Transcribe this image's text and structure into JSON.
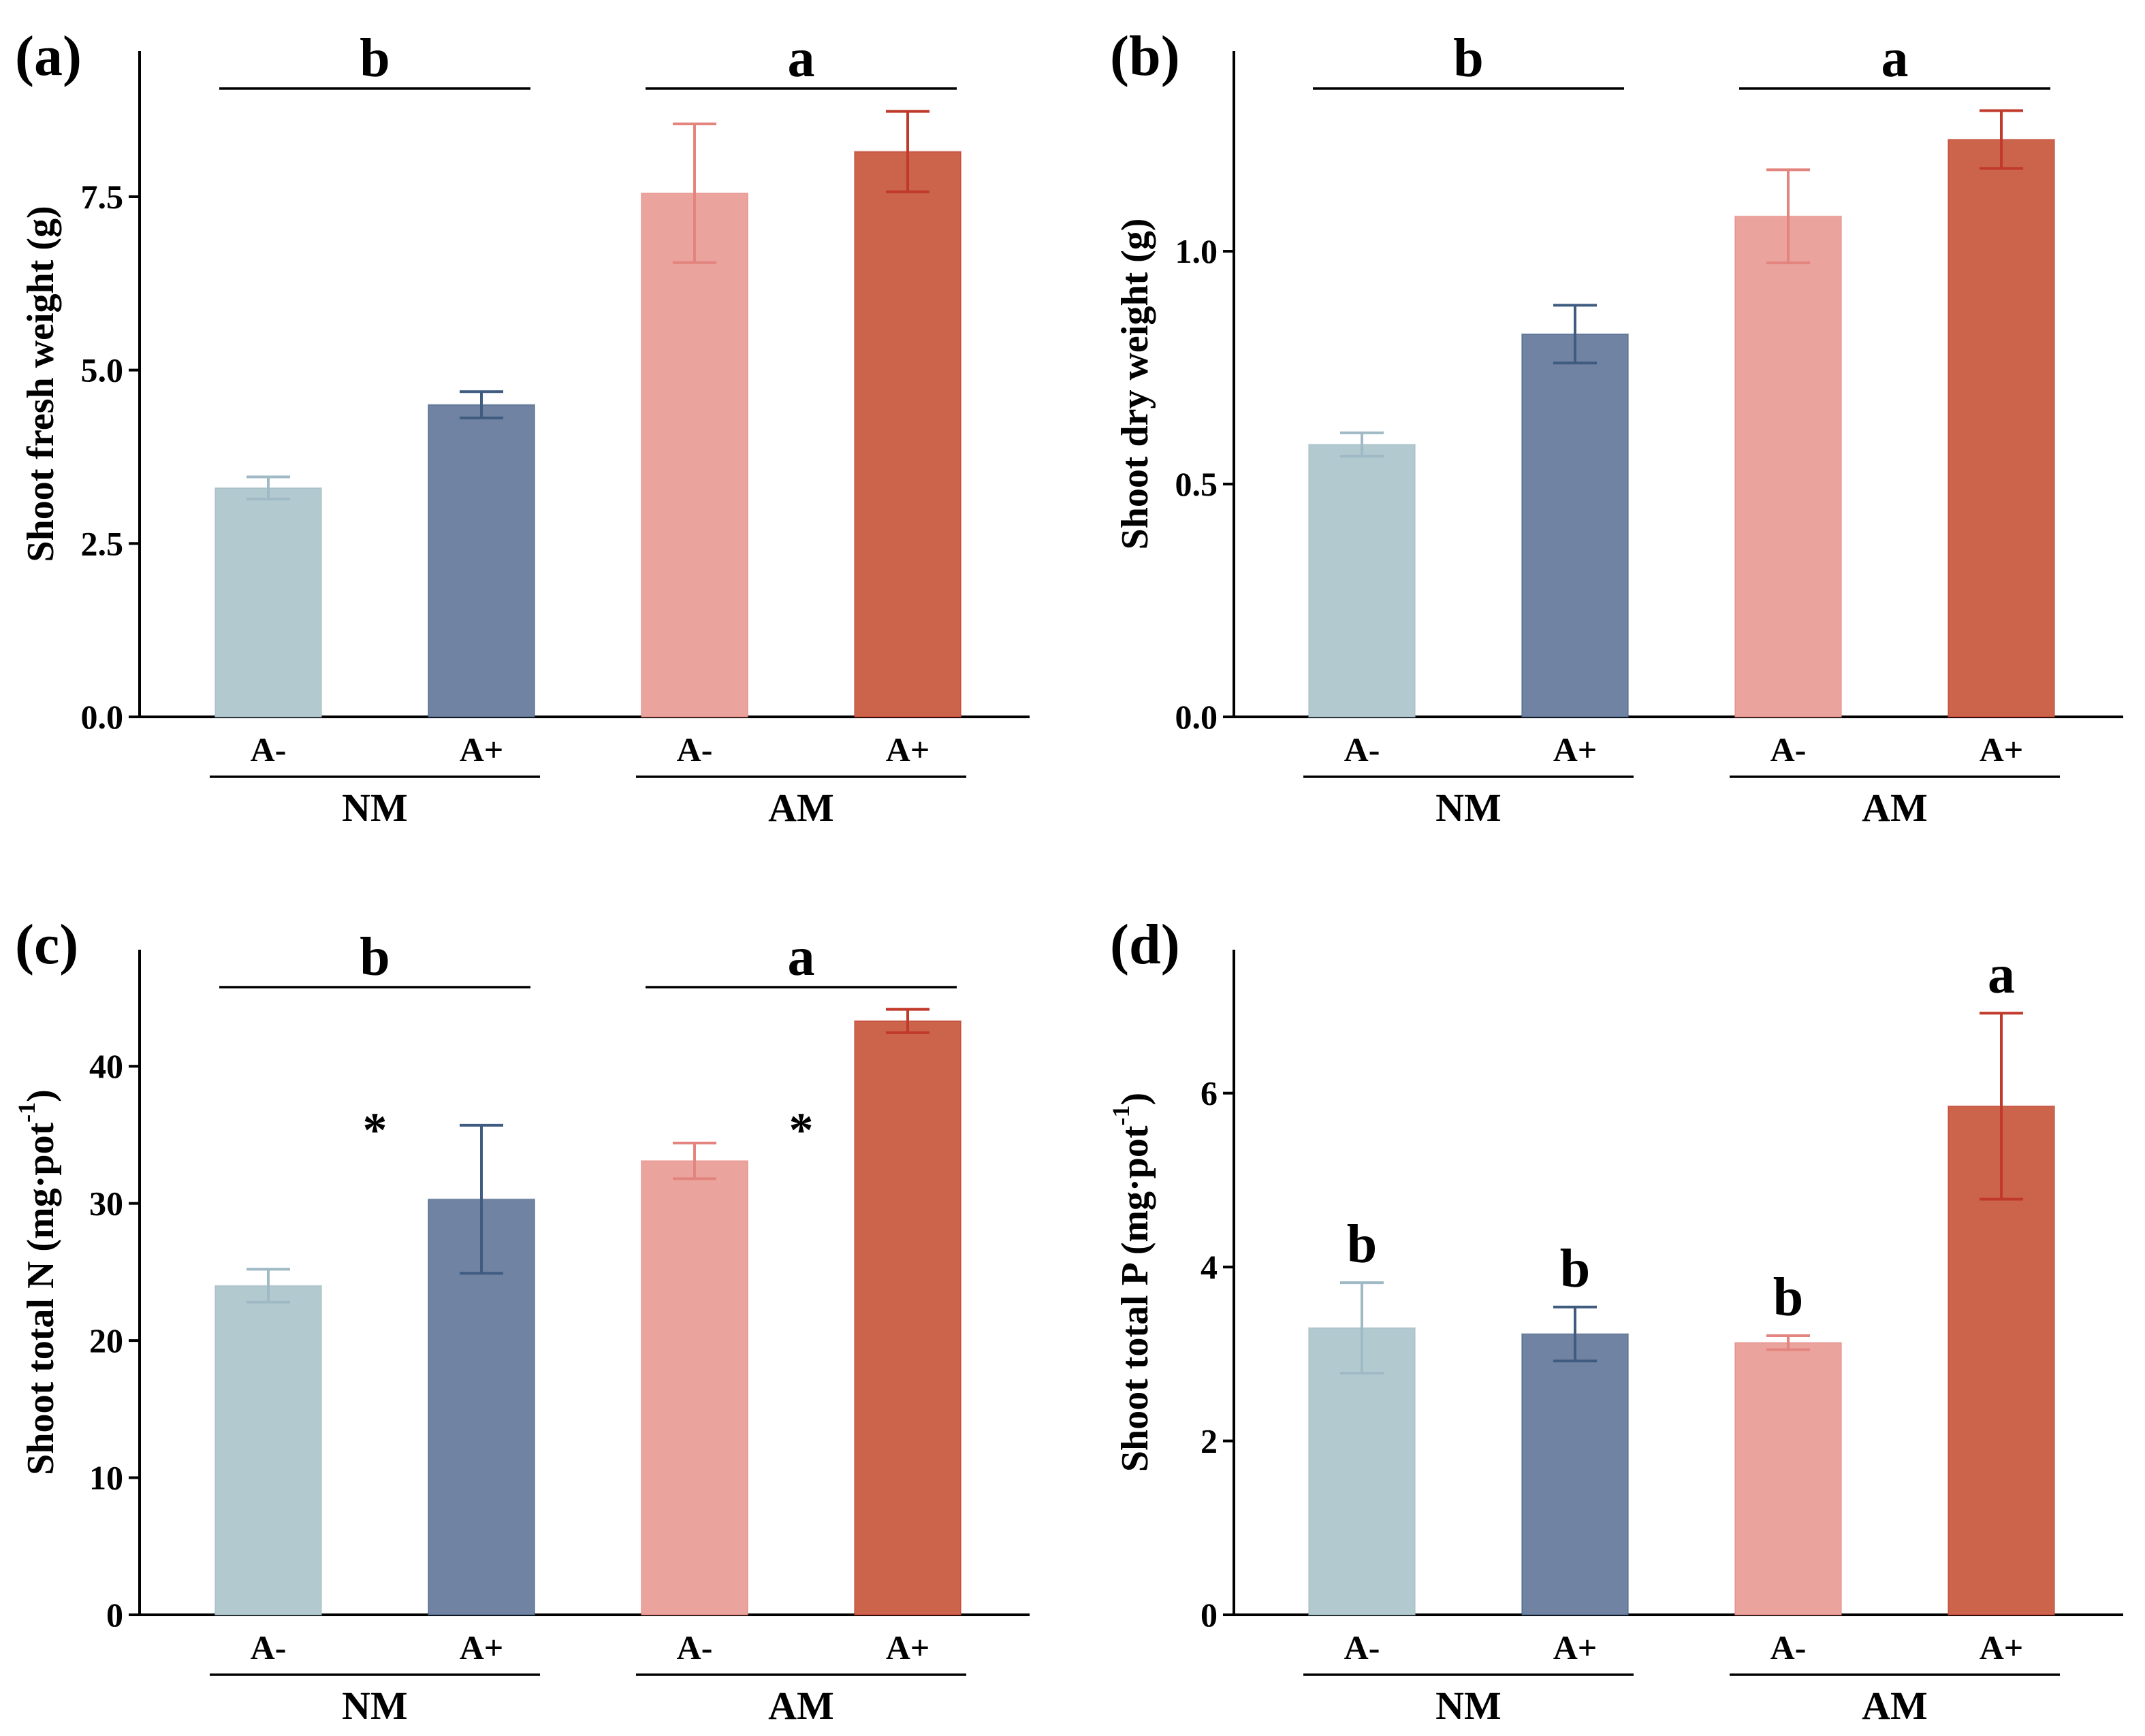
{
  "chart_data": [
    {
      "panel_label": "(a)",
      "type": "bar",
      "ylabel": "Shoot fresh weight (g)",
      "ylim": [
        0,
        9.6
      ],
      "yticks": [
        0,
        2.5,
        5,
        7.5
      ],
      "ytick_labels": [
        "0.0",
        "2.5",
        "5.0",
        "7.5"
      ],
      "categories": [
        "A-",
        "A+",
        "A-",
        "A+"
      ],
      "groups": [
        "NM",
        "AM"
      ],
      "values": [
        3.3,
        4.5,
        7.55,
        8.15
      ],
      "errors": [
        0.16,
        0.19,
        1.0,
        0.58
      ],
      "colors": [
        "#b3c9d0",
        "#7183a2",
        "#eba39e",
        "#cc644c"
      ],
      "error_colors": [
        "#9fbac4",
        "#3f5b80",
        "#e3847e",
        "#c0392b"
      ],
      "sig_mode": "group",
      "sig_letters": [
        "b",
        "a"
      ],
      "asterisks": []
    },
    {
      "panel_label": "(b)",
      "type": "bar",
      "ylabel": "Shoot dry weight (g)",
      "ylim": [
        0,
        1.43
      ],
      "yticks": [
        0,
        0.5,
        1.0
      ],
      "ytick_labels": [
        "0.0",
        "0.5",
        "1.0"
      ],
      "categories": [
        "A-",
        "A+",
        "A-",
        "A+"
      ],
      "groups": [
        "NM",
        "AM"
      ],
      "values": [
        0.585,
        0.822,
        1.075,
        1.24
      ],
      "errors": [
        0.025,
        0.062,
        0.1,
        0.062
      ],
      "colors": [
        "#b3c9d0",
        "#7183a2",
        "#eba39e",
        "#cc644c"
      ],
      "error_colors": [
        "#9fbac4",
        "#3f5b80",
        "#e3847e",
        "#c0392b"
      ],
      "sig_mode": "group",
      "sig_letters": [
        "b",
        "a"
      ],
      "asterisks": []
    },
    {
      "panel_label": "(c)",
      "type": "bar",
      "ylabel": "Shoot total N (mg·pot",
      "ylabel_sup": "-1",
      "ylabel_end": ")",
      "ylim": [
        0,
        48.5
      ],
      "yticks": [
        0,
        10,
        20,
        30,
        40
      ],
      "ytick_labels": [
        "0",
        "10",
        "20",
        "30",
        "40"
      ],
      "categories": [
        "A-",
        "A+",
        "A-",
        "A+"
      ],
      "groups": [
        "NM",
        "AM"
      ],
      "values": [
        24.0,
        30.3,
        33.1,
        43.3
      ],
      "errors": [
        1.2,
        5.4,
        1.3,
        0.85
      ],
      "colors": [
        "#b3c9d0",
        "#7183a2",
        "#eba39e",
        "#cc644c"
      ],
      "error_colors": [
        "#9fbac4",
        "#3f5b80",
        "#e3847e",
        "#c0392b"
      ],
      "sig_mode": "group",
      "sig_letters": [
        "b",
        "a"
      ],
      "asterisks": [
        "*",
        "*"
      ]
    },
    {
      "panel_label": "(d)",
      "type": "bar",
      "ylabel": "Shoot total P (mg·pot",
      "ylabel_sup": "-1",
      "ylabel_end": ")",
      "ylim": [
        0,
        7.65
      ],
      "yticks": [
        0,
        2,
        4,
        6
      ],
      "ytick_labels": [
        "0",
        "2",
        "4",
        "6"
      ],
      "categories": [
        "A-",
        "A+",
        "A-",
        "A+"
      ],
      "groups": [
        "NM",
        "AM"
      ],
      "values": [
        3.3,
        3.23,
        3.13,
        5.85
      ],
      "errors": [
        0.52,
        0.31,
        0.08,
        1.07
      ],
      "colors": [
        "#b3c9d0",
        "#7183a2",
        "#eba39e",
        "#cc644c"
      ],
      "error_colors": [
        "#9fbac4",
        "#3f5b80",
        "#e3847e",
        "#c0392b"
      ],
      "sig_mode": "bar",
      "sig_letters": [
        "b",
        "b",
        "b",
        "a"
      ],
      "asterisks": []
    }
  ]
}
